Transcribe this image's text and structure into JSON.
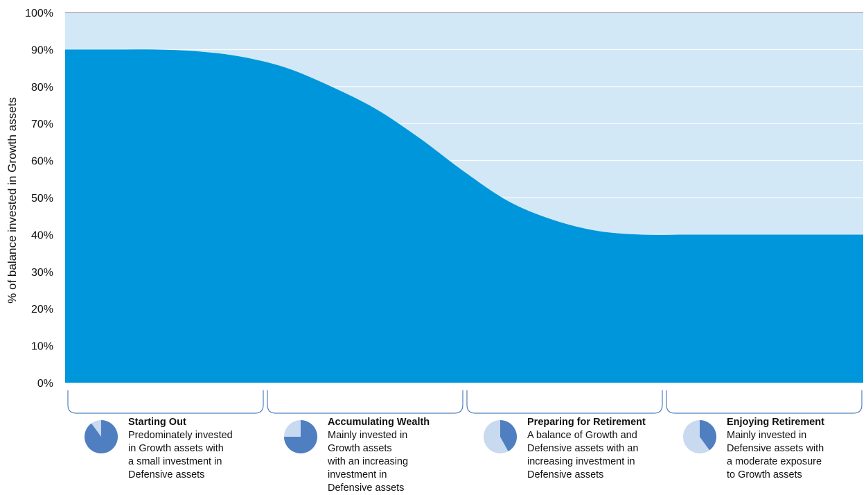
{
  "chart_data": {
    "type": "area",
    "ylabel": "% of balance invested in Growth assets",
    "xlabel": "",
    "ylim": [
      0,
      100
    ],
    "y_ticks": [
      "0%",
      "10%",
      "20%",
      "30%",
      "40%",
      "50%",
      "60%",
      "70%",
      "80%",
      "90%",
      "100%"
    ],
    "grid": true,
    "series": [
      {
        "values": [
          90,
          90,
          90,
          89.5,
          88,
          85,
          80,
          74,
          66,
          57,
          49,
          44,
          41,
          40,
          40,
          40,
          40,
          40,
          40
        ]
      }
    ],
    "colors": {
      "growth": "#0096db",
      "defensive": "#d3e8f7",
      "brace": "#4f7fc0"
    }
  },
  "stages": [
    {
      "title": "Starting Out",
      "description": "Predominately invested\nin Growth assets with\na small investment in\nDefensive assets",
      "growth_share": 0.9
    },
    {
      "title": "Accumulating Wealth",
      "description": "Mainly invested in\nGrowth assets\nwith an increasing\ninvestment in\nDefensive assets",
      "growth_share": 0.75
    },
    {
      "title": "Preparing for Retirement",
      "description": "A balance of Growth and\nDefensive assets with an\nincreasing investment in\nDefensive assets",
      "growth_share": 0.42
    },
    {
      "title": "Enjoying Retirement",
      "description": "Mainly invested in\nDefensive assets with\na moderate exposure\nto Growth assets",
      "growth_share": 0.4
    }
  ],
  "pie_colors": {
    "growth": "#4f7fc0",
    "defensive": "#c8d9f0"
  }
}
